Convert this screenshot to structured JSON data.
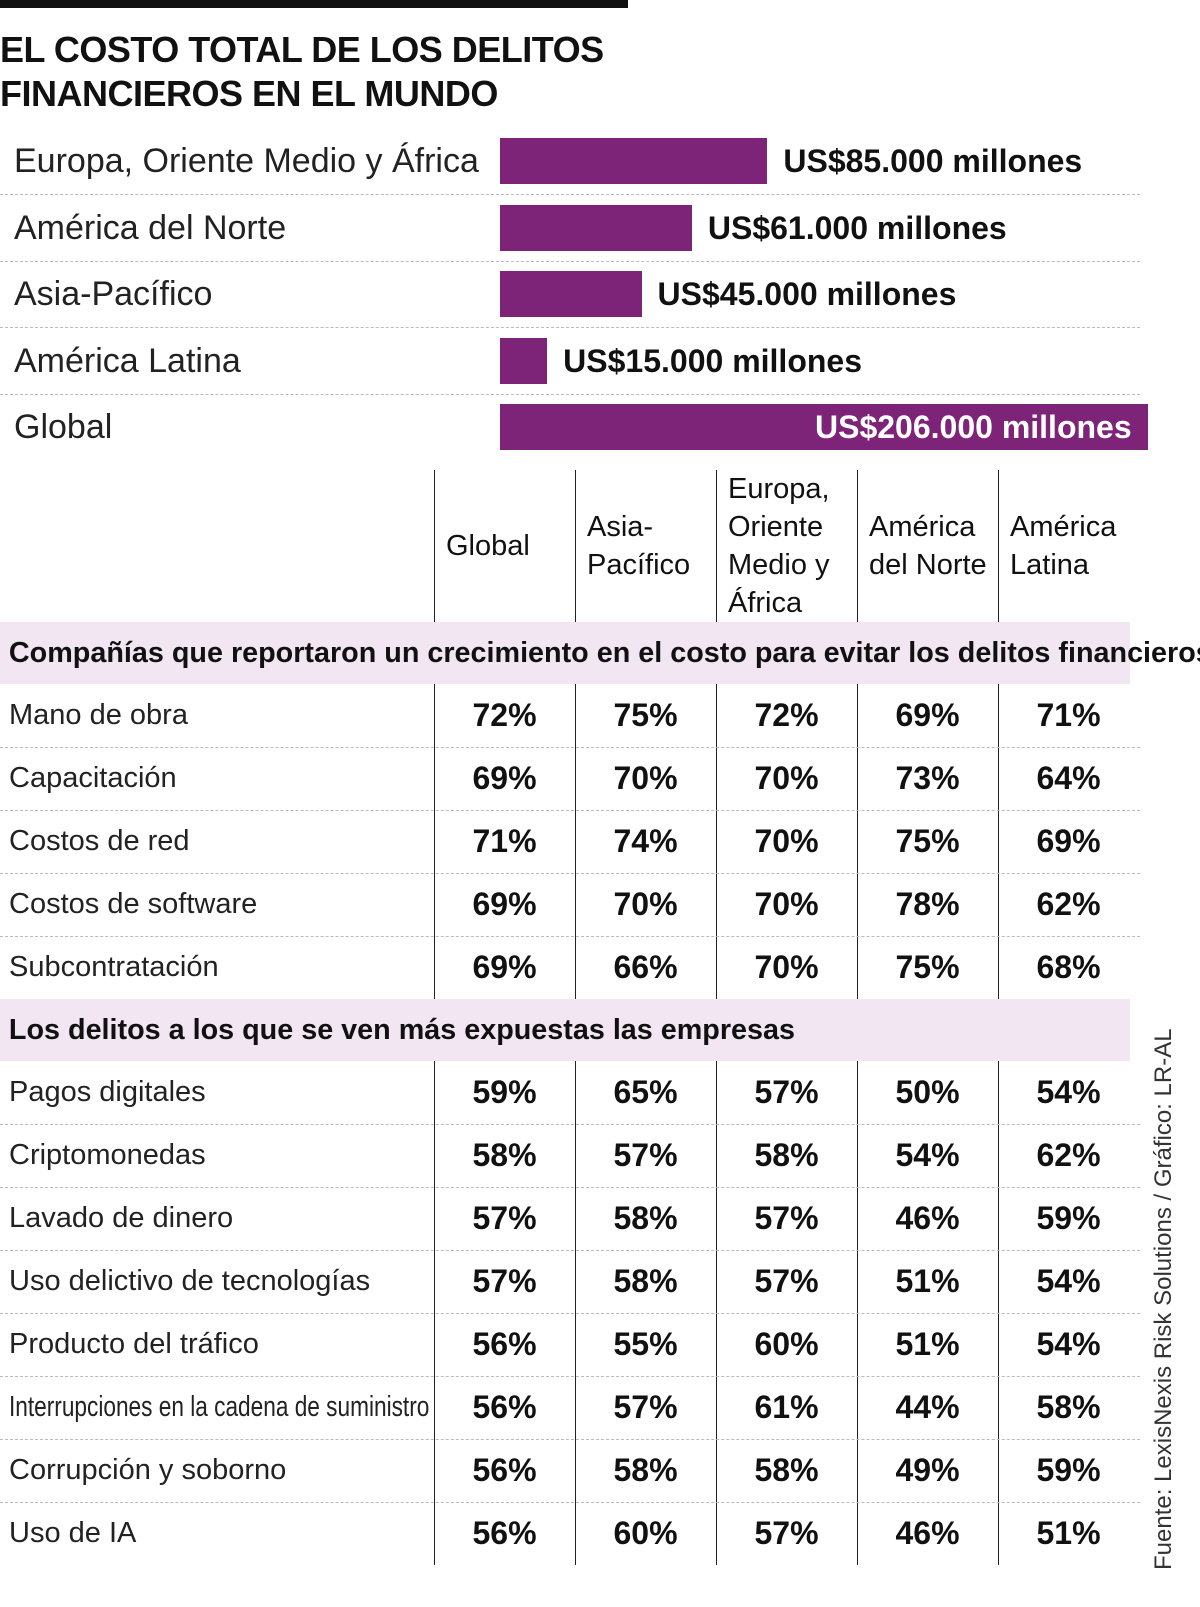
{
  "chart_data": {
    "type": "bar",
    "orientation": "horizontal",
    "title": "EL COSTO TOTAL DE LOS DELITOS FINANCIEROS EN EL MUNDO",
    "categories": [
      "Europa, Oriente Medio y África",
      "América del Norte",
      "Asia-Pacífico",
      "América Latina",
      "Global"
    ],
    "values": [
      85000,
      61000,
      45000,
      15000,
      206000
    ],
    "value_labels": [
      "US$85.000 millones",
      "US$61.000 millones",
      "US$45.000 millones",
      "US$15.000 millones",
      "US$206.000 millones"
    ],
    "color": "#7d2479"
  },
  "table": {
    "columns": [
      "Global",
      "Asia-Pacífico",
      "Europa, Oriente Medio y África",
      "América del Norte",
      "América Latina"
    ],
    "sections": [
      {
        "title": "Compañías que reportaron un crecimiento en el costo para evitar los delitos financieros",
        "rows": [
          {
            "label": "Mano de obra",
            "values": [
              "72%",
              "75%",
              "72%",
              "69%",
              "71%"
            ]
          },
          {
            "label": "Capacitación",
            "values": [
              "69%",
              "70%",
              "70%",
              "73%",
              "64%"
            ]
          },
          {
            "label": "Costos de red",
            "values": [
              "71%",
              "74%",
              "70%",
              "75%",
              "69%"
            ]
          },
          {
            "label": "Costos de software",
            "values": [
              "69%",
              "70%",
              "70%",
              "78%",
              "62%"
            ]
          },
          {
            "label": "Subcontratación",
            "values": [
              "69%",
              "66%",
              "70%",
              "75%",
              "68%"
            ]
          }
        ]
      },
      {
        "title": "Los delitos a los que se ven más expuestas las empresas",
        "rows": [
          {
            "label": "Pagos digitales",
            "values": [
              "59%",
              "65%",
              "57%",
              "50%",
              "54%"
            ]
          },
          {
            "label": "Criptomonedas",
            "values": [
              "58%",
              "57%",
              "58%",
              "54%",
              "62%"
            ]
          },
          {
            "label": "Lavado de dinero",
            "values": [
              "57%",
              "58%",
              "57%",
              "46%",
              "59%"
            ]
          },
          {
            "label": "Uso delictivo de tecnologías",
            "values": [
              "57%",
              "58%",
              "57%",
              "51%",
              "54%"
            ]
          },
          {
            "label": "Producto del tráfico",
            "values": [
              "56%",
              "55%",
              "60%",
              "51%",
              "54%"
            ]
          },
          {
            "label": "Interrupciones en la cadena de suministro",
            "values": [
              "56%",
              "57%",
              "61%",
              "44%",
              "58%"
            ]
          },
          {
            "label": "Corrupción y soborno",
            "values": [
              "56%",
              "58%",
              "58%",
              "49%",
              "59%"
            ]
          },
          {
            "label": "Uso de IA",
            "values": [
              "56%",
              "60%",
              "57%",
              "46%",
              "51%"
            ]
          }
        ]
      }
    ]
  },
  "source": "Fuente: LexisNexis Risk Solutions / Gráfico: LR-AL"
}
